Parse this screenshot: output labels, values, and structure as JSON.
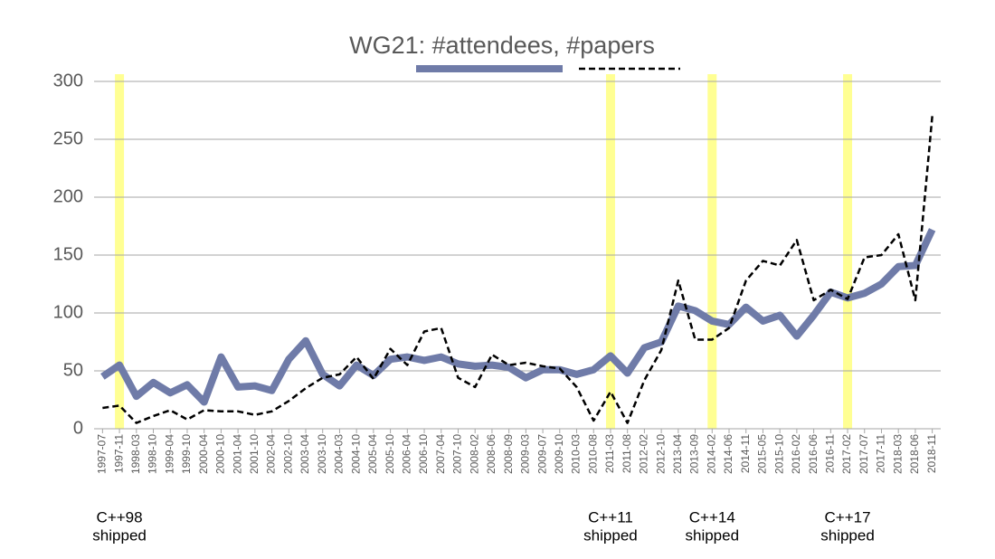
{
  "chart_data": {
    "type": "line",
    "title": "WG21: #attendees, #papers",
    "categories": [
      "1997-07",
      "1997-11",
      "1998-03",
      "1998-10",
      "1999-04",
      "1999-10",
      "2000-04",
      "2000-10",
      "2001-04",
      "2001-10",
      "2002-04",
      "2002-10",
      "2003-04",
      "2003-10",
      "2004-03",
      "2004-10",
      "2005-04",
      "2005-10",
      "2006-04",
      "2006-10",
      "2007-04",
      "2007-10",
      "2008-02",
      "2008-06",
      "2008-09",
      "2009-03",
      "2009-07",
      "2009-10",
      "2010-03",
      "2010-08",
      "2011-03",
      "2011-08",
      "2012-02",
      "2012-10",
      "2013-04",
      "2013-09",
      "2014-02",
      "2014-06",
      "2014-11",
      "2015-05",
      "2015-10",
      "2016-02",
      "2016-06",
      "2016-11",
      "2017-02",
      "2017-07",
      "2017-11",
      "2018-03",
      "2018-06",
      "2018-11"
    ],
    "series": [
      {
        "color": "#6f7ba8",
        "style": "solid",
        "values": [
          45,
          55,
          28,
          40,
          31,
          38,
          23,
          62,
          36,
          37,
          33,
          60,
          76,
          47,
          37,
          55,
          46,
          60,
          62,
          59,
          62,
          56,
          54,
          55,
          53,
          44,
          51,
          51,
          47,
          51,
          63,
          48,
          70,
          75,
          106,
          102,
          93,
          90,
          105,
          93,
          98,
          80,
          98,
          118,
          113,
          117,
          125,
          140,
          141,
          172
        ]
      },
      {
        "color": "#000000",
        "style": "dashed",
        "values": [
          18,
          20,
          5,
          11,
          16,
          8,
          16,
          15,
          15,
          12,
          15,
          24,
          35,
          44,
          47,
          62,
          43,
          69,
          55,
          84,
          87,
          44,
          36,
          64,
          55,
          57,
          54,
          52,
          36,
          7,
          32,
          5,
          42,
          68,
          128,
          77,
          77,
          87,
          128,
          145,
          141,
          163,
          111,
          120,
          112,
          148,
          150,
          168,
          111,
          270
        ]
      }
    ],
    "ylim": [
      0,
      300
    ],
    "yticks": [
      0,
      50,
      100,
      150,
      200,
      250,
      300
    ],
    "grid": true,
    "annotations": [
      {
        "category": "1997-11",
        "lines": [
          "C++98",
          "shipped"
        ]
      },
      {
        "category": "2011-03",
        "lines": [
          "C++11",
          "shipped"
        ]
      },
      {
        "category": "2014-02",
        "lines": [
          "C++14",
          "shipped"
        ]
      },
      {
        "category": "2017-02",
        "lines": [
          "C++17",
          "shipped"
        ]
      }
    ]
  }
}
